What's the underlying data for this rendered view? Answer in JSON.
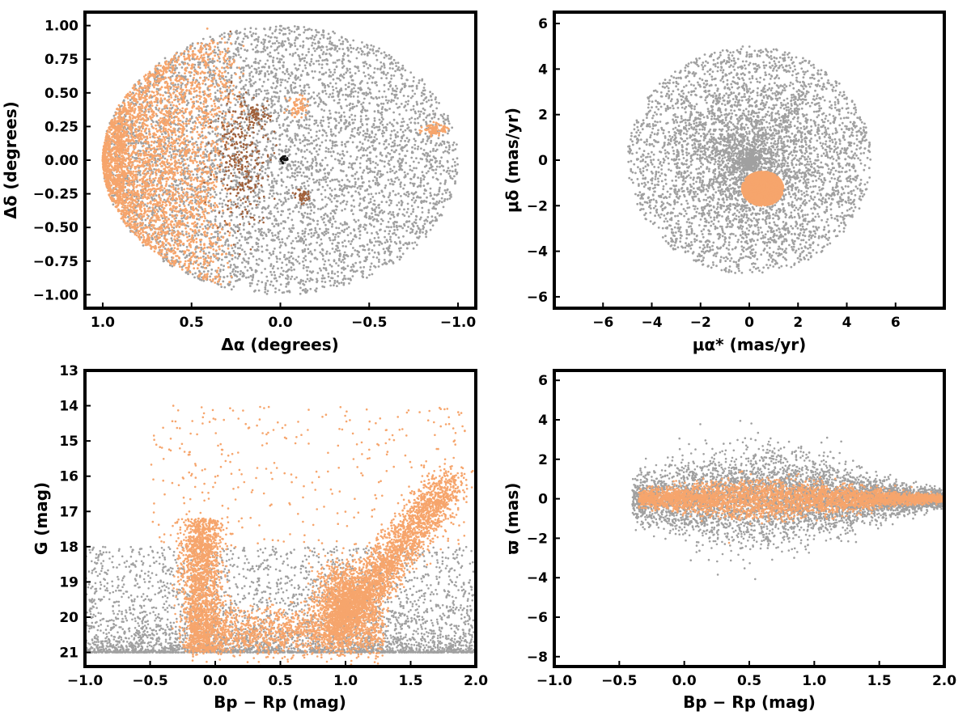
{
  "colors": {
    "field": "#a0a0a0",
    "members": "#f6a56c",
    "members_dark": "#a0603a",
    "core": "#111111",
    "frame": "#000000"
  },
  "chart_data": [
    {
      "type": "scatter",
      "id": "sky",
      "xlabel": "Δα (degrees)",
      "ylabel": "Δδ (degrees)",
      "xlim": [
        1.1,
        -1.1
      ],
      "ylim": [
        -1.1,
        1.1
      ],
      "xticks": [
        1.0,
        0.5,
        0.0,
        -0.5,
        -1.0
      ],
      "xtick_labels": [
        "1.0",
        "0.5",
        "0.0",
        "−0.5",
        "−1.0"
      ],
      "yticks": [
        1.0,
        0.75,
        0.5,
        0.25,
        0.0,
        -0.25,
        -0.5,
        -0.75,
        -1.0
      ],
      "ytick_labels": [
        "1.00",
        "0.75",
        "0.50",
        "0.25",
        "0.00",
        "−0.25",
        "−0.50",
        "−0.75",
        "−1.00"
      ],
      "grid": false,
      "series": [
        {
          "color_key": "field",
          "description": "all stars within 1 degree radius",
          "x_range": [
            -1.0,
            1.0
          ],
          "y_range": [
            -1.0,
            1.0
          ]
        },
        {
          "color_key": "members",
          "description": "stars concentrated toward positive Δα",
          "x_range": [
            0.2,
            1.0
          ],
          "y_range": [
            -1.0,
            1.0
          ]
        },
        {
          "color_key": "members_dark",
          "description": "patches near Δα 0.1–0.3",
          "x_range": [
            0.05,
            0.35
          ],
          "y_range": [
            -0.45,
            0.45
          ]
        },
        {
          "color_key": "core",
          "description": "small clump near origin",
          "x_range": [
            -0.05,
            0.05
          ],
          "y_range": [
            -0.02,
            0.04
          ]
        }
      ]
    },
    {
      "type": "scatter",
      "id": "proper-motion",
      "xlabel": "μα* (mas/yr)",
      "ylabel": "μδ (mas/yr)",
      "xlim": [
        -8,
        8
      ],
      "ylim": [
        -6.5,
        6.5
      ],
      "xticks": [
        -6,
        -4,
        -2,
        0,
        2,
        4,
        6
      ],
      "xtick_labels": [
        "−6",
        "−4",
        "−2",
        "0",
        "2",
        "4",
        "6"
      ],
      "yticks": [
        6,
        4,
        2,
        0,
        -2,
        -4,
        -6
      ],
      "ytick_labels": [
        "6",
        "4",
        "2",
        "0",
        "−2",
        "−4",
        "−6"
      ],
      "grid": false,
      "series": [
        {
          "color_key": "field",
          "description": "field stars within 5 mas/yr",
          "center": [
            0,
            0
          ],
          "radius": 5.0
        },
        {
          "color_key": "members",
          "description": "cluster members clump",
          "center": [
            0.6,
            -1.2
          ],
          "spread": [
            0.45,
            0.4
          ]
        }
      ]
    },
    {
      "type": "scatter",
      "id": "cmd",
      "xlabel": "Bp − Rp (mag)",
      "ylabel": "G (mag)",
      "xlim": [
        -1.0,
        2.0
      ],
      "ylim": [
        21.4,
        13.0
      ],
      "xticks": [
        -1.0,
        -0.5,
        0.0,
        0.5,
        1.0,
        1.5,
        2.0
      ],
      "xtick_labels": [
        "−1.0",
        "−0.5",
        "0.0",
        "0.5",
        "1.0",
        "1.5",
        "2.0"
      ],
      "yticks": [
        21,
        20,
        19,
        18,
        17,
        16,
        15,
        14,
        13
      ],
      "ytick_labels": [
        "21",
        "20",
        "19",
        "18",
        "17",
        "16",
        "15",
        "14",
        "13"
      ],
      "grid": false,
      "series": [
        {
          "color_key": "field",
          "description": "field stars, mostly faint G 19–21"
        },
        {
          "color_key": "members",
          "description": "blue sequence at Bp−Rp −0.2–0.2 and red giant branch from 0.9 to 1.8"
        }
      ]
    },
    {
      "type": "scatter",
      "id": "parallax",
      "xlabel": "Bp − Rp (mag)",
      "ylabel": "ϖ (mas)",
      "xlim": [
        -1.0,
        2.0
      ],
      "ylim": [
        -8.5,
        6.5
      ],
      "xticks": [
        -1.0,
        -0.5,
        0.0,
        0.5,
        1.0,
        1.5,
        2.0
      ],
      "xtick_labels": [
        "−1.0",
        "−0.5",
        "0.0",
        "0.5",
        "1.0",
        "1.5",
        "2.0"
      ],
      "yticks": [
        6,
        4,
        2,
        0,
        -2,
        -4,
        -6,
        -8
      ],
      "ytick_labels": [
        "6",
        "4",
        "2",
        "0",
        "−2",
        "−4",
        "−6",
        "−8"
      ],
      "grid": false,
      "series": [
        {
          "color_key": "field",
          "description": "field stars spread around ϖ = 0"
        },
        {
          "color_key": "members",
          "description": "members tightly around ϖ = 0"
        }
      ]
    }
  ]
}
